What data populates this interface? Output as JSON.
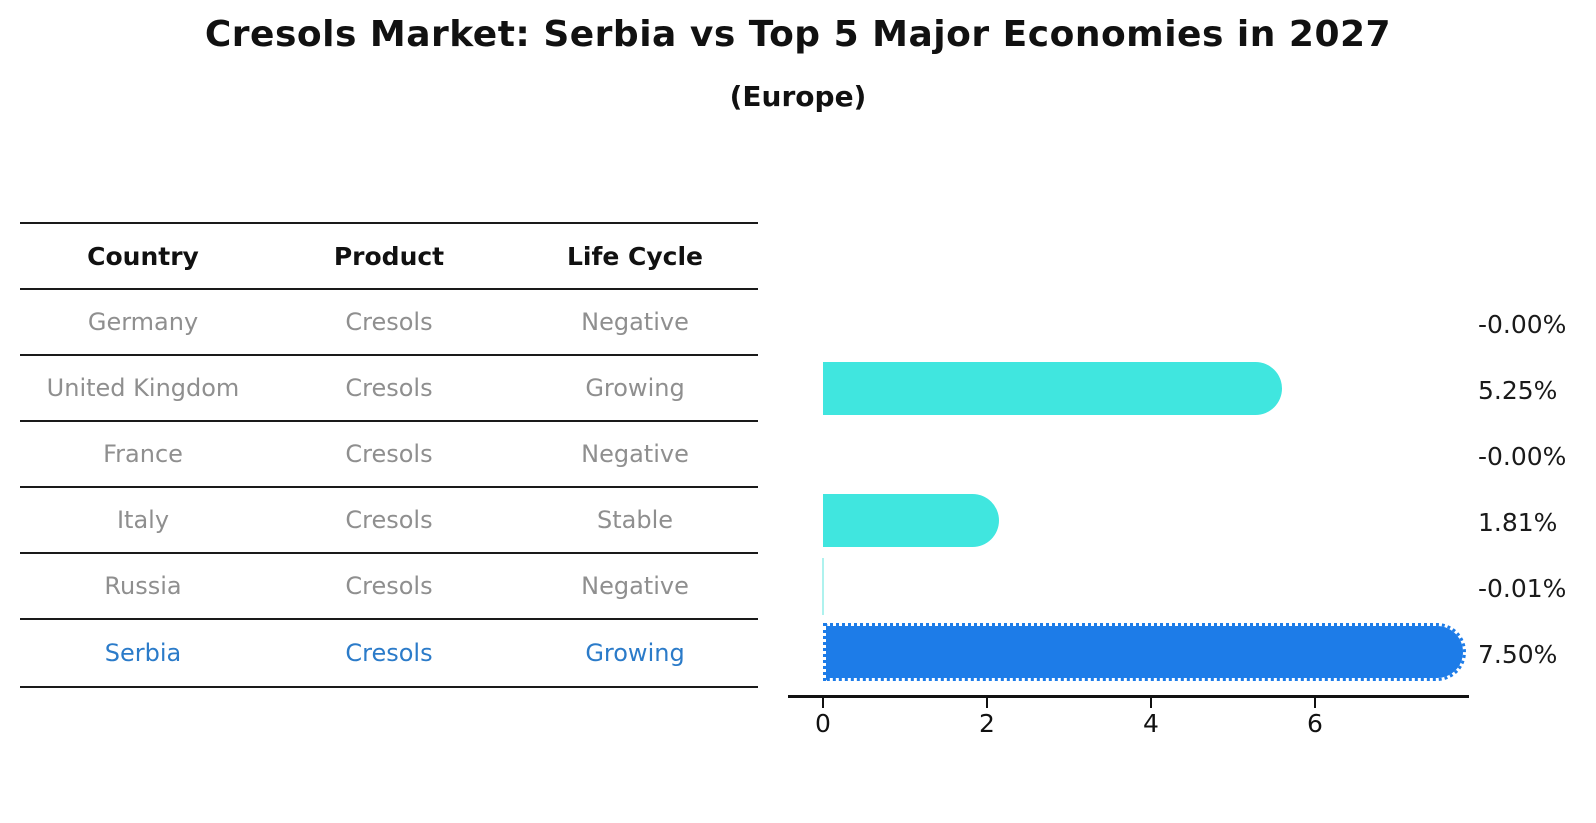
{
  "title": "Cresols Market: Serbia vs Top 5 Major Economies in 2027",
  "subtitle": "(Europe)",
  "colors": {
    "bar_cyan": "#40e6df",
    "bar_blue": "#1d7ce8",
    "bar_negative_sliver": "#aef2ee",
    "highlight_text": "#2b7bc9",
    "row_text": "#8f8f8f",
    "header_text": "#111111"
  },
  "table": {
    "columns": [
      "Country",
      "Product",
      "Life Cycle"
    ],
    "highlighted_row": "Serbia",
    "rows": [
      {
        "country": "Germany",
        "product": "Cresols",
        "life_cycle": "Negative"
      },
      {
        "country": "United Kingdom",
        "product": "Cresols",
        "life_cycle": "Growing"
      },
      {
        "country": "France",
        "product": "Cresols",
        "life_cycle": "Negative"
      },
      {
        "country": "Italy",
        "product": "Cresols",
        "life_cycle": "Stable"
      },
      {
        "country": "Russia",
        "product": "Cresols",
        "life_cycle": "Negative"
      },
      {
        "country": "Serbia",
        "product": "Cresols",
        "life_cycle": "Growing"
      }
    ]
  },
  "chart_data": {
    "type": "bar",
    "orientation": "horizontal",
    "title": "Cresols Market: Serbia vs Top 5 Major Economies in 2027 (Europe)",
    "categories": [
      "Germany",
      "United Kingdom",
      "France",
      "Italy",
      "Russia",
      "Serbia"
    ],
    "values": [
      -0.0,
      5.25,
      -0.0,
      1.81,
      -0.01,
      7.5
    ],
    "value_labels": [
      "-0.00%",
      "5.25%",
      "-0.00%",
      "1.81%",
      "-0.01%",
      "7.50%"
    ],
    "bar_styles": [
      "none",
      "cyan",
      "none",
      "cyan",
      "sliver",
      "blue-dotted"
    ],
    "x_ticks": [
      0,
      2,
      4,
      6
    ],
    "xlim": [
      -0.4,
      7.9
    ],
    "xlabel": "",
    "ylabel": "",
    "grid": false,
    "legend": false
  }
}
